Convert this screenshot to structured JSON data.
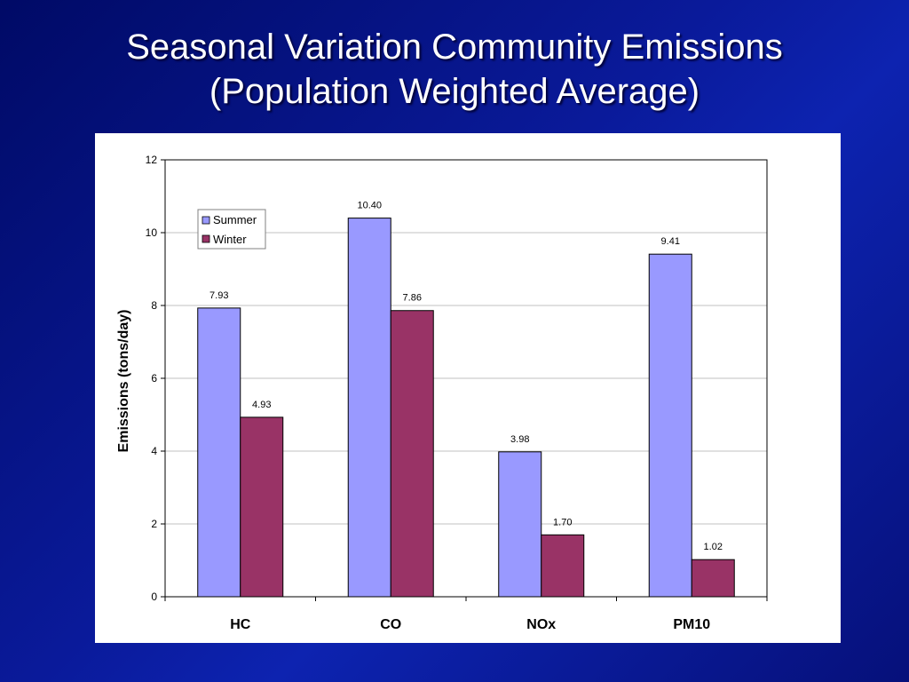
{
  "slide": {
    "title_line1": "Seasonal Variation Community Emissions",
    "title_line2": "(Population Weighted Average)"
  },
  "chart_data": {
    "type": "bar",
    "title": "",
    "xlabel": "",
    "ylabel": "Emissions (tons/day)",
    "categories": [
      "HC",
      "CO",
      "NOx",
      "PM10"
    ],
    "series": [
      {
        "name": "Summer",
        "values": [
          7.93,
          10.4,
          3.98,
          9.41
        ],
        "labels": [
          "7.93",
          "10.40",
          "3.98",
          "9.41"
        ],
        "color": "#9999ff"
      },
      {
        "name": "Winter",
        "values": [
          4.93,
          7.86,
          1.7,
          1.02
        ],
        "labels": [
          "4.93",
          "7.86",
          "1.70",
          "1.02"
        ],
        "color": "#993366"
      }
    ],
    "ylim": [
      0,
      12
    ],
    "yticks": [
      "0",
      "2",
      "4",
      "6",
      "8",
      "10",
      "12"
    ],
    "grid": true,
    "legend": "top-left"
  }
}
